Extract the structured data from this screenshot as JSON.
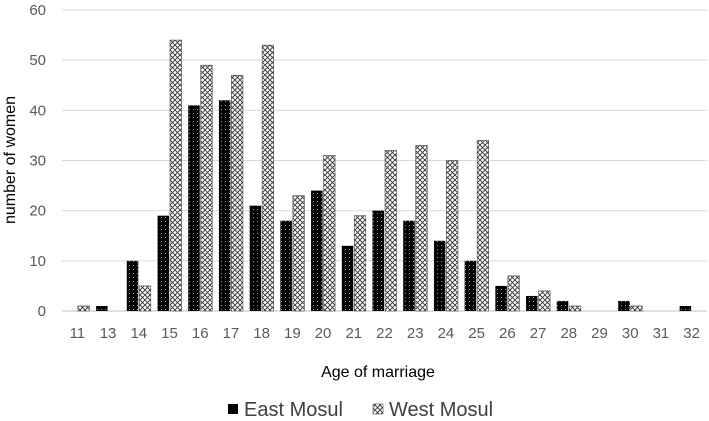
{
  "chart_data": {
    "type": "bar",
    "xlabel": "Age of marriage",
    "ylabel": "number of women",
    "ylim": [
      0,
      60
    ],
    "yticks": [
      0,
      10,
      20,
      30,
      40,
      50,
      60
    ],
    "grid": true,
    "legend_position": "bottom",
    "categories": [
      "11",
      "13",
      "14",
      "15",
      "16",
      "17",
      "18",
      "19",
      "20",
      "21",
      "22",
      "23",
      "24",
      "25",
      "26",
      "27",
      "28",
      "29",
      "30",
      "31",
      "32"
    ],
    "series": [
      {
        "name": "East Mosul",
        "pattern": "dots-on-black",
        "values": [
          0,
          1,
          10,
          19,
          41,
          42,
          21,
          18,
          24,
          13,
          20,
          18,
          14,
          10,
          5,
          3,
          2,
          0,
          2,
          0,
          1
        ]
      },
      {
        "name": "West Mosul",
        "pattern": "crosshatch",
        "values": [
          1,
          0,
          5,
          54,
          49,
          47,
          53,
          23,
          31,
          19,
          32,
          33,
          30,
          34,
          7,
          4,
          1,
          0,
          1,
          0,
          0
        ]
      }
    ]
  },
  "colors": {
    "east": "#000000",
    "west_line": "#3a3a3a",
    "grid": "#d9d9d9"
  }
}
